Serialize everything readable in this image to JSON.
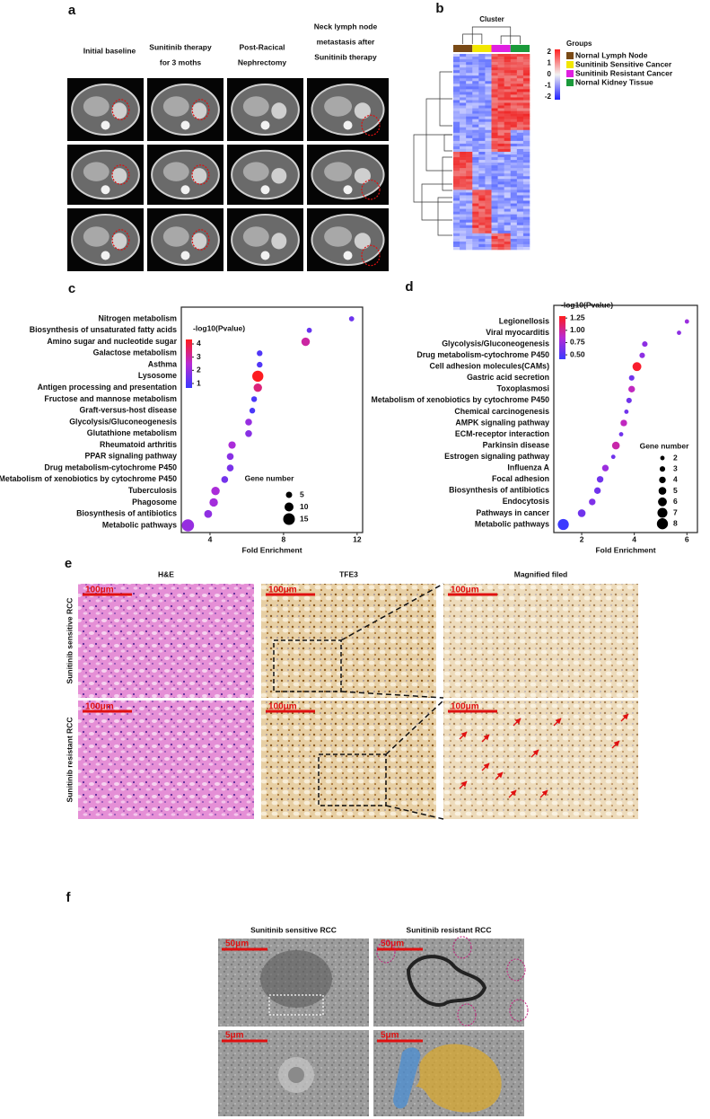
{
  "panel_labels": [
    "a",
    "b",
    "c",
    "d",
    "e",
    "f"
  ],
  "a": {
    "columns": [
      [
        "Initial baseline"
      ],
      [
        "Sunitinib therapy",
        "for 3 moths"
      ],
      [
        "Post-Racical",
        "Nephrectomy"
      ],
      [
        "Neck lymph node",
        "metastasis after",
        "Sunitinib  therapy"
      ]
    ]
  },
  "b": {
    "title": "Cluster",
    "legend_title": "Groups",
    "groups": [
      {
        "name": "Nornal Lymph Node",
        "color": "#7a4a16"
      },
      {
        "name": "Sunitinib Sensitive Cancer",
        "color": "#f2e600"
      },
      {
        "name": "Sunitinib Resistant Cancer",
        "color": "#e020e0"
      },
      {
        "name": "Nornal Kidney Tissue",
        "color": "#1a9a3a"
      }
    ],
    "scale_ticks": [
      2,
      1,
      0,
      -1,
      -2
    ]
  },
  "chart_data": [
    {
      "type": "scatter",
      "xlabel": "Fold Enrichment",
      "color_title": "-log10(Pvalue)",
      "size_title": "Gene number",
      "categories": [
        "Nitrogen metabolism",
        "Biosynthesis of unsaturated fatty acids",
        "Amino sugar and nucleotide sugar",
        "Galactose metabolism",
        "Asthma",
        "Lysosome",
        "Antigen processing and presentation",
        "Fructose and mannose metabolism",
        "Graft-versus-host disease",
        "Glycolysis/Gluconeogenesis",
        "Glutathione metabolism",
        "Rheumatoid arthritis",
        "PPAR signaling pathway",
        "Drug metabolism-cytochrome P450",
        "Metabolism of xenobiotics by cytochrome P450",
        "Tuberculosis",
        "Phagosome",
        "Biosynthesis of antibiotics",
        "Metabolic  pathways"
      ],
      "x": [
        11.7,
        9.4,
        9.2,
        6.7,
        6.7,
        6.6,
        6.6,
        6.4,
        6.3,
        6.1,
        6.1,
        5.2,
        5.1,
        5.1,
        4.8,
        4.3,
        4.2,
        3.9,
        2.8
      ],
      "gene_number": [
        3,
        3,
        9,
        4,
        4,
        14,
        9,
        4,
        4,
        6,
        6,
        7,
        6,
        6,
        6,
        9,
        9,
        8,
        16
      ],
      "neg_log10_p": [
        1.4,
        1.3,
        3.0,
        1.0,
        1.0,
        4.3,
        3.4,
        0.9,
        0.9,
        2.0,
        1.8,
        2.3,
        1.8,
        1.6,
        1.5,
        2.3,
        2.2,
        1.9,
        2.0
      ],
      "xlim": [
        2.44,
        12.3
      ],
      "xticks": [
        4,
        8,
        12
      ],
      "color_lim": [
        0.66,
        4.34
      ],
      "color_ticks": [
        4,
        3,
        2,
        1
      ],
      "color_scale": [
        "#3a3aff",
        "#b82ad4",
        "#ff1c1c"
      ],
      "size_ticks": [
        5,
        10,
        15
      ]
    },
    {
      "type": "scatter",
      "xlabel": "Fold Enrichment",
      "color_title": "-log10(Pvalue)",
      "size_title": "Gene number",
      "categories": [
        "Legionellosis",
        "Viral myocarditis",
        "Glycolysis/Gluconeogenesis",
        "Drug metabolism-cytochrome P450",
        "Cell adhesion molecules(CAMs)",
        "Gastric acid secretion",
        "Toxoplasmosi",
        "Metabolism of xenobiotics by cytochrome P450",
        "Chemical carcinogenesis",
        "AMPK signaling pathway",
        "ECM-receptor interaction",
        "Parkinsin disease",
        "Estrogen signaling pathway",
        "Influenza A",
        "Focal adhesion",
        "Biosynthesis of antibiotics",
        "Endocytosis",
        "Pathways in cancer",
        "Metabolic pathways"
      ],
      "x": [
        6.0,
        5.7,
        4.4,
        4.3,
        4.1,
        3.9,
        3.9,
        3.8,
        3.7,
        3.6,
        3.5,
        3.3,
        3.2,
        2.9,
        2.7,
        2.6,
        2.4,
        2.0,
        1.3
      ],
      "gene_number": [
        2,
        2,
        3,
        3,
        6,
        3,
        4,
        3,
        2,
        4,
        2,
        5,
        2,
        4,
        4,
        4,
        4,
        5,
        8
      ],
      "neg_log10_p": [
        0.75,
        0.7,
        0.7,
        0.7,
        1.25,
        0.6,
        0.9,
        0.6,
        0.6,
        0.9,
        0.6,
        0.95,
        0.6,
        0.75,
        0.6,
        0.6,
        0.65,
        0.6,
        0.42
      ],
      "xlim": [
        0.94,
        6.4
      ],
      "xticks": [
        2,
        4,
        6
      ],
      "color_lim": [
        0.41,
        1.29
      ],
      "color_ticks": [
        {
          "value": 1.25,
          "label": "1.25"
        },
        {
          "value": 1,
          "label": "1.00"
        },
        0.75,
        {
          "value": 0.5,
          "label": "0.50"
        }
      ],
      "color_scale": [
        "#3a3aff",
        "#b82ad4",
        "#ff1c1c"
      ],
      "size_ticks": [
        2,
        3,
        4,
        5,
        6,
        7,
        8
      ]
    }
  ],
  "e": {
    "columns": [
      "H&E",
      "TFE3",
      "Magnified filed"
    ],
    "rows": [
      "Sunitinib sensitive RCC",
      "Sunitinib  resistant RCC"
    ],
    "scale_bars": [
      "100μm",
      "100μm",
      "100μm",
      "100μm",
      "100μm",
      "100μm"
    ]
  },
  "f": {
    "columns": [
      "Sunitinib sensitive RCC",
      "Sunitinib  resistant RCC"
    ],
    "scale_bars": [
      "50μm",
      "50μm",
      "5μm",
      "5μm"
    ]
  }
}
